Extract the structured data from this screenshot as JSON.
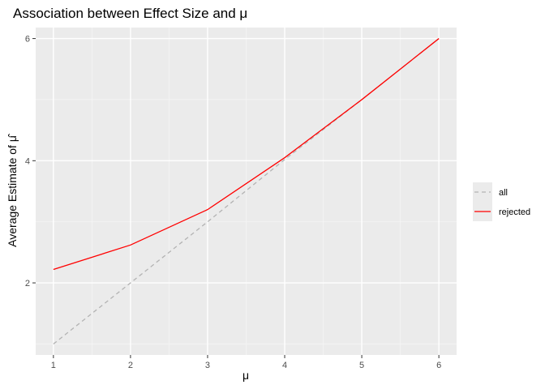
{
  "chart_data": {
    "type": "line",
    "title": "Association between Effect Size and μ",
    "xlabel": "μ",
    "ylabel": "Average Estimate of μ̂",
    "xlim": [
      0.77,
      6.23
    ],
    "ylim": [
      0.82,
      6.18
    ],
    "x_ticks": [
      1,
      2,
      3,
      4,
      5,
      6
    ],
    "y_ticks": [
      2,
      4,
      6
    ],
    "grid": true,
    "legend_position": "right",
    "series": [
      {
        "name": "all",
        "color": "#b3b3b3",
        "dash": "dashed",
        "x": [
          1,
          2,
          3,
          4,
          5,
          6
        ],
        "y": [
          1.0,
          2.0,
          3.0,
          4.02,
          5.0,
          6.0
        ]
      },
      {
        "name": "rejected",
        "color": "#ff0000",
        "dash": "solid",
        "x": [
          1,
          2,
          3,
          4,
          5,
          6
        ],
        "y": [
          2.22,
          2.62,
          3.2,
          4.05,
          5.0,
          6.0
        ]
      }
    ]
  }
}
